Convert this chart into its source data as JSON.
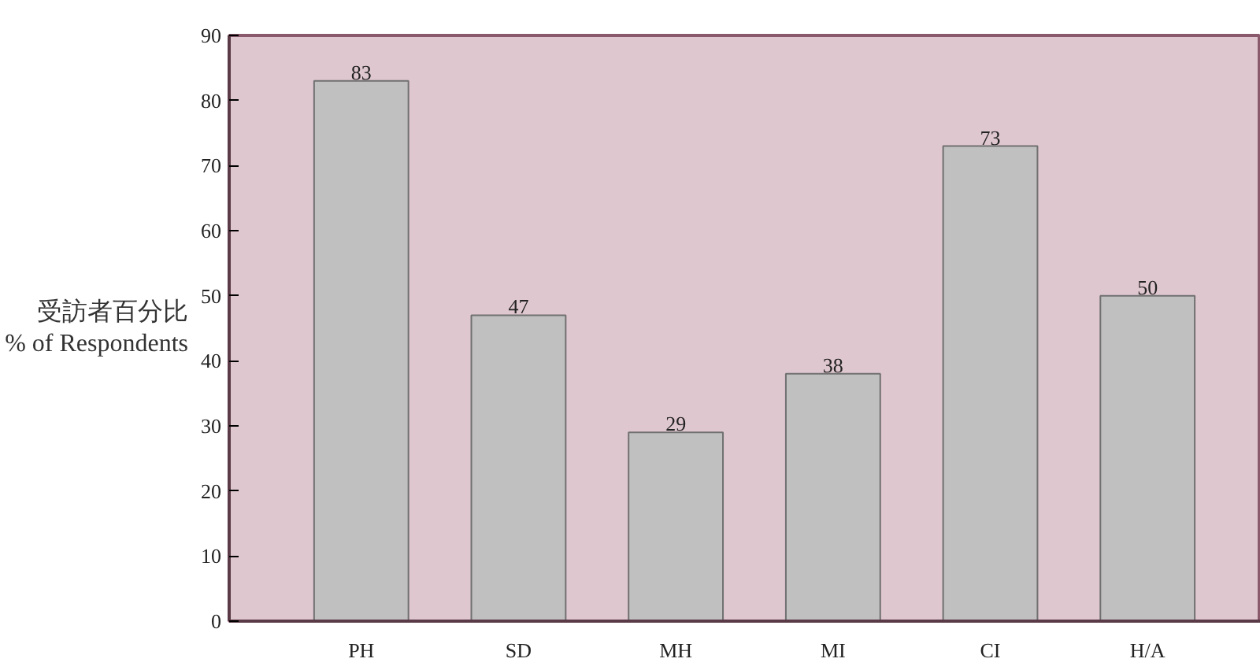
{
  "chart_data": {
    "type": "bar",
    "ylabel": "受訪者百分比\n% of Respondents",
    "categories": [
      "PH",
      "SD",
      "MH",
      "MI",
      "CI",
      "H/A"
    ],
    "values": [
      83,
      47,
      29,
      38,
      73,
      50
    ],
    "color": "#c0c0c0",
    "ylim": [
      0,
      90
    ],
    "yticks": [
      0,
      10,
      20,
      30,
      40,
      50,
      60,
      70,
      80,
      90
    ],
    "data_labels": true,
    "grid": false
  }
}
